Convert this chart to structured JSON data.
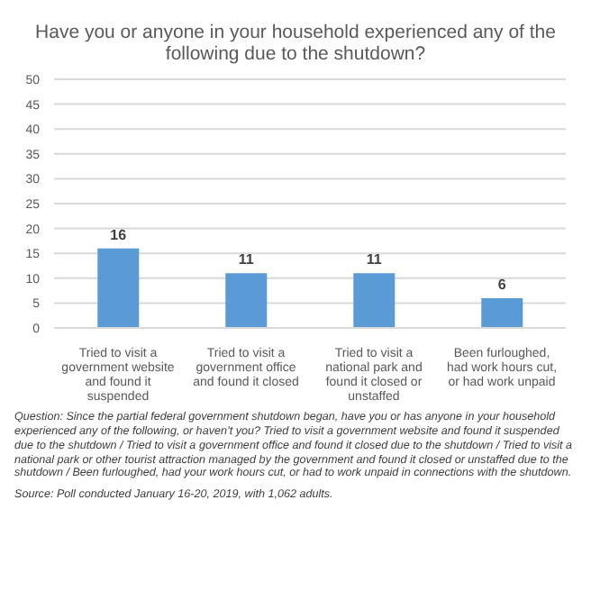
{
  "chart_data": {
    "type": "bar",
    "title": "Have you or anyone in your household experienced any of the following due to the shutdown?",
    "categories": [
      "Tried to visit a government website and found it suspended",
      "Tried to visit a government office and found it closed",
      "Tried to visit a national park and found it closed or unstaffed",
      "Been furloughed, had work hours cut, or had work unpaid"
    ],
    "values": [
      16,
      11,
      11,
      6
    ],
    "color": "#5b9bd5",
    "ylim": [
      0,
      50
    ],
    "yticks": [
      0,
      5,
      10,
      15,
      20,
      25,
      30,
      35,
      40,
      45,
      50
    ],
    "grid": "y",
    "data_labels": true,
    "annotations": [
      "Question: Since the partial federal government shutdown began, have you or has anyone in your household experienced any of the following, or haven’t you? Tried to visit a government website and found it suspended due to the shutdown / Tried to visit a government office and found it closed due to the shutdown / Tried to visit a national park or other tourist attraction managed by the government and found it closed or unstaffed due to the shutdown / Been furloughed, had your work hours cut, or had to work unpaid in connections with the shutdown.",
      "Source: Poll conducted January 16-20, 2019, with 1,062 adults."
    ]
  }
}
